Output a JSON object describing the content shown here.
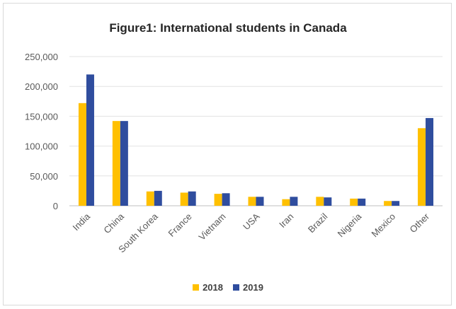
{
  "chart_data": {
    "type": "bar",
    "title": "Figure1: International students in Canada",
    "xlabel": "",
    "ylabel": "",
    "ylim": [
      0,
      250000
    ],
    "yticks": [
      "0",
      "50,000",
      "100,000",
      "150,000",
      "200,000",
      "250,000"
    ],
    "ytick_values": [
      0,
      50000,
      100000,
      150000,
      200000,
      250000
    ],
    "categories": [
      "India",
      "China",
      "South Korea",
      "France",
      "Vietnam",
      "USA",
      "Iran",
      "Brazil",
      "Nigeria",
      "Mexico",
      "Other"
    ],
    "series": [
      {
        "name": "2018",
        "color": "#ffc000",
        "values": [
          172000,
          142000,
          24000,
          22000,
          20000,
          15000,
          11000,
          15000,
          12000,
          8000,
          130000
        ]
      },
      {
        "name": "2019",
        "color": "#2f4d9e",
        "values": [
          220000,
          142000,
          25000,
          24000,
          21000,
          15000,
          15000,
          14000,
          12000,
          8000,
          147000
        ]
      }
    ],
    "grid": true,
    "legend_position": "bottom"
  }
}
